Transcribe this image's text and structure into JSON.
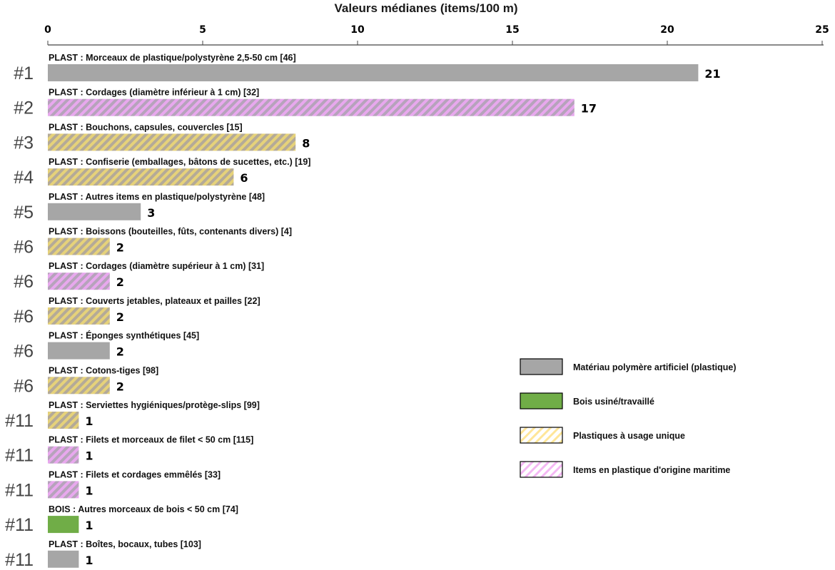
{
  "chart_data": {
    "type": "bar",
    "orientation": "horizontal",
    "title": "Valeurs médianes (items/100 m)",
    "xlabel": "Valeurs médianes (items/100 m)",
    "xlim": [
      0,
      25
    ],
    "xticks": [
      "0",
      "5",
      "10",
      "15",
      "20",
      "25"
    ],
    "xtick_values": [
      0,
      5,
      10,
      15,
      20,
      25
    ],
    "grid": false,
    "legend_position": "right",
    "categories": [
      {
        "rank": "#1",
        "label": "PLAST : Morceaux de plastique/polystyrène 2,5-50 cm [46]",
        "value": 21,
        "value_label": "21",
        "group": "plastique"
      },
      {
        "rank": "#2",
        "label": "PLAST : Cordages (diamètre inférieur à 1 cm) [32]",
        "value": 17,
        "value_label": "17",
        "group": "maritime"
      },
      {
        "rank": "#3",
        "label": "PLAST : Bouchons, capsules, couvercles [15]",
        "value": 8,
        "value_label": "8",
        "group": "usage_unique"
      },
      {
        "rank": "#4",
        "label": "PLAST : Confiserie (emballages, bâtons de sucettes, etc.) [19]",
        "value": 6,
        "value_label": "6",
        "group": "usage_unique"
      },
      {
        "rank": "#5",
        "label": "PLAST : Autres items en plastique/polystyrène [48]",
        "value": 3,
        "value_label": "3",
        "group": "plastique"
      },
      {
        "rank": "#6",
        "label": "PLAST : Boissons (bouteilles, fûts, contenants divers) [4]",
        "value": 2,
        "value_label": "2",
        "group": "usage_unique"
      },
      {
        "rank": "#6",
        "label": "PLAST : Cordages (diamètre supérieur à 1 cm) [31]",
        "value": 2,
        "value_label": "2",
        "group": "maritime"
      },
      {
        "rank": "#6",
        "label": "PLAST : Couverts jetables, plateaux et pailles [22]",
        "value": 2,
        "value_label": "2",
        "group": "usage_unique"
      },
      {
        "rank": "#6",
        "label": "PLAST : Éponges synthétiques [45]",
        "value": 2,
        "value_label": "2",
        "group": "plastique"
      },
      {
        "rank": "#6",
        "label": "PLAST : Cotons-tiges [98]",
        "value": 2,
        "value_label": "2",
        "group": "usage_unique"
      },
      {
        "rank": "#11",
        "label": "PLAST : Serviettes hygiéniques/protège-slips [99]",
        "value": 1,
        "value_label": "1",
        "group": "usage_unique"
      },
      {
        "rank": "#11",
        "label": "PLAST : Filets et morceaux de filet < 50 cm [115]",
        "value": 1,
        "value_label": "1",
        "group": "maritime"
      },
      {
        "rank": "#11",
        "label": "PLAST : Filets et cordages emmêlés [33]",
        "value": 1,
        "value_label": "1",
        "group": "maritime"
      },
      {
        "rank": "#11",
        "label": "BOIS : Autres morceaux de bois < 50 cm [74]",
        "value": 1,
        "value_label": "1",
        "group": "bois"
      },
      {
        "rank": "#11",
        "label": "PLAST : Boîtes, bocaux, tubes [103]",
        "value": 1,
        "value_label": "1",
        "group": "plastique"
      }
    ],
    "legend": [
      {
        "key": "plastique",
        "label": "Matériau polymère artificiel (plastique)"
      },
      {
        "key": "bois",
        "label": "Bois usiné/travaillé"
      },
      {
        "key": "usage_unique",
        "label": "Plastiques à usage unique"
      },
      {
        "key": "maritime",
        "label": "Items en plastique d'origine maritime"
      }
    ],
    "colors": {
      "plastique": "#a6a6a6",
      "bois": "#70ad47",
      "usage_unique_stripe": "#e6d27a",
      "usage_unique_base": "#b4aa98",
      "maritime_stripe": "#e8a8ee",
      "maritime_base": "#b6a3bb",
      "legend_usage_unique_stripe": "#ffe699",
      "legend_maritime_stripe": "#f4b8f4"
    }
  }
}
